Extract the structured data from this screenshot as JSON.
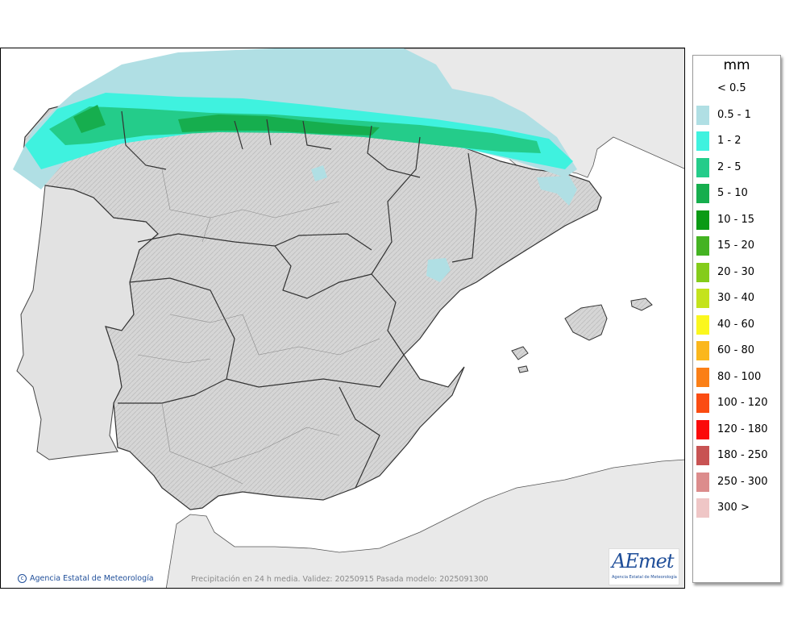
{
  "legend": {
    "unit": "mm",
    "items": [
      {
        "label": "< 0.5",
        "color": ""
      },
      {
        "label": "0.5 - 1",
        "color": "#b0dfe4"
      },
      {
        "label": "1 - 2",
        "color": "#3ff2df"
      },
      {
        "label": "2 - 5",
        "color": "#24cc8a"
      },
      {
        "label": "5 - 10",
        "color": "#16ae4e"
      },
      {
        "label": "10 - 15",
        "color": "#0a9a14"
      },
      {
        "label": "15 - 20",
        "color": "#44b322"
      },
      {
        "label": "20 - 30",
        "color": "#84cc1a"
      },
      {
        "label": "30 - 40",
        "color": "#c4e31c"
      },
      {
        "label": "40 - 60",
        "color": "#fbf71e"
      },
      {
        "label": "60 - 80",
        "color": "#fbb71c"
      },
      {
        "label": "80 - 100",
        "color": "#fb7f16"
      },
      {
        "label": "100 - 120",
        "color": "#fb4c12"
      },
      {
        "label": "120 - 180",
        "color": "#fb0a0a"
      },
      {
        "label": "180 - 250",
        "color": "#c85353"
      },
      {
        "label": "250 - 300",
        "color": "#dc8c8c"
      },
      {
        "label": "300 >",
        "color": "#efc6c6"
      }
    ]
  },
  "footer": {
    "credit": "Agencia Estatal de Meteorología",
    "caption": "Precipitación en 24 h media. Validez: 20250915 Pasada modelo: 2025091300"
  },
  "logo": {
    "word": "AEmet",
    "subtitle": "Agencia Estatal de Meteorología"
  },
  "colors": {
    "land": "#dcdcdc",
    "outside_land": "#e9e9e9",
    "sea": "#ffffff",
    "border": "#333333"
  }
}
